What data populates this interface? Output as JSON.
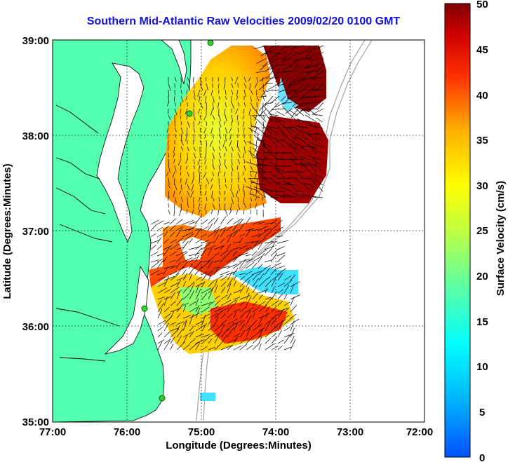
{
  "title": "Southern Mid-Atlantic Raw Velocities 2009/02/20 0100 GMT",
  "xlabel": "Longitude (Degrees:Minutes)",
  "ylabel": "Latitude (Degrees:Minutes)",
  "x_ticks": [
    "77:00",
    "76:00",
    "75:00",
    "74:00",
    "73:00",
    "72:00"
  ],
  "y_ticks": [
    "39:00",
    "38:00",
    "37:00",
    "36:00",
    "35:00"
  ],
  "colorbar": {
    "label": "Surface Velocity (cm/s)",
    "ticks": [
      "50",
      "45",
      "40",
      "35",
      "30",
      "25",
      "20",
      "15",
      "10",
      "5",
      "0"
    ],
    "range": [
      0,
      50
    ]
  },
  "colors": {
    "land": "#55ffb0",
    "title": "#1010e0"
  }
}
